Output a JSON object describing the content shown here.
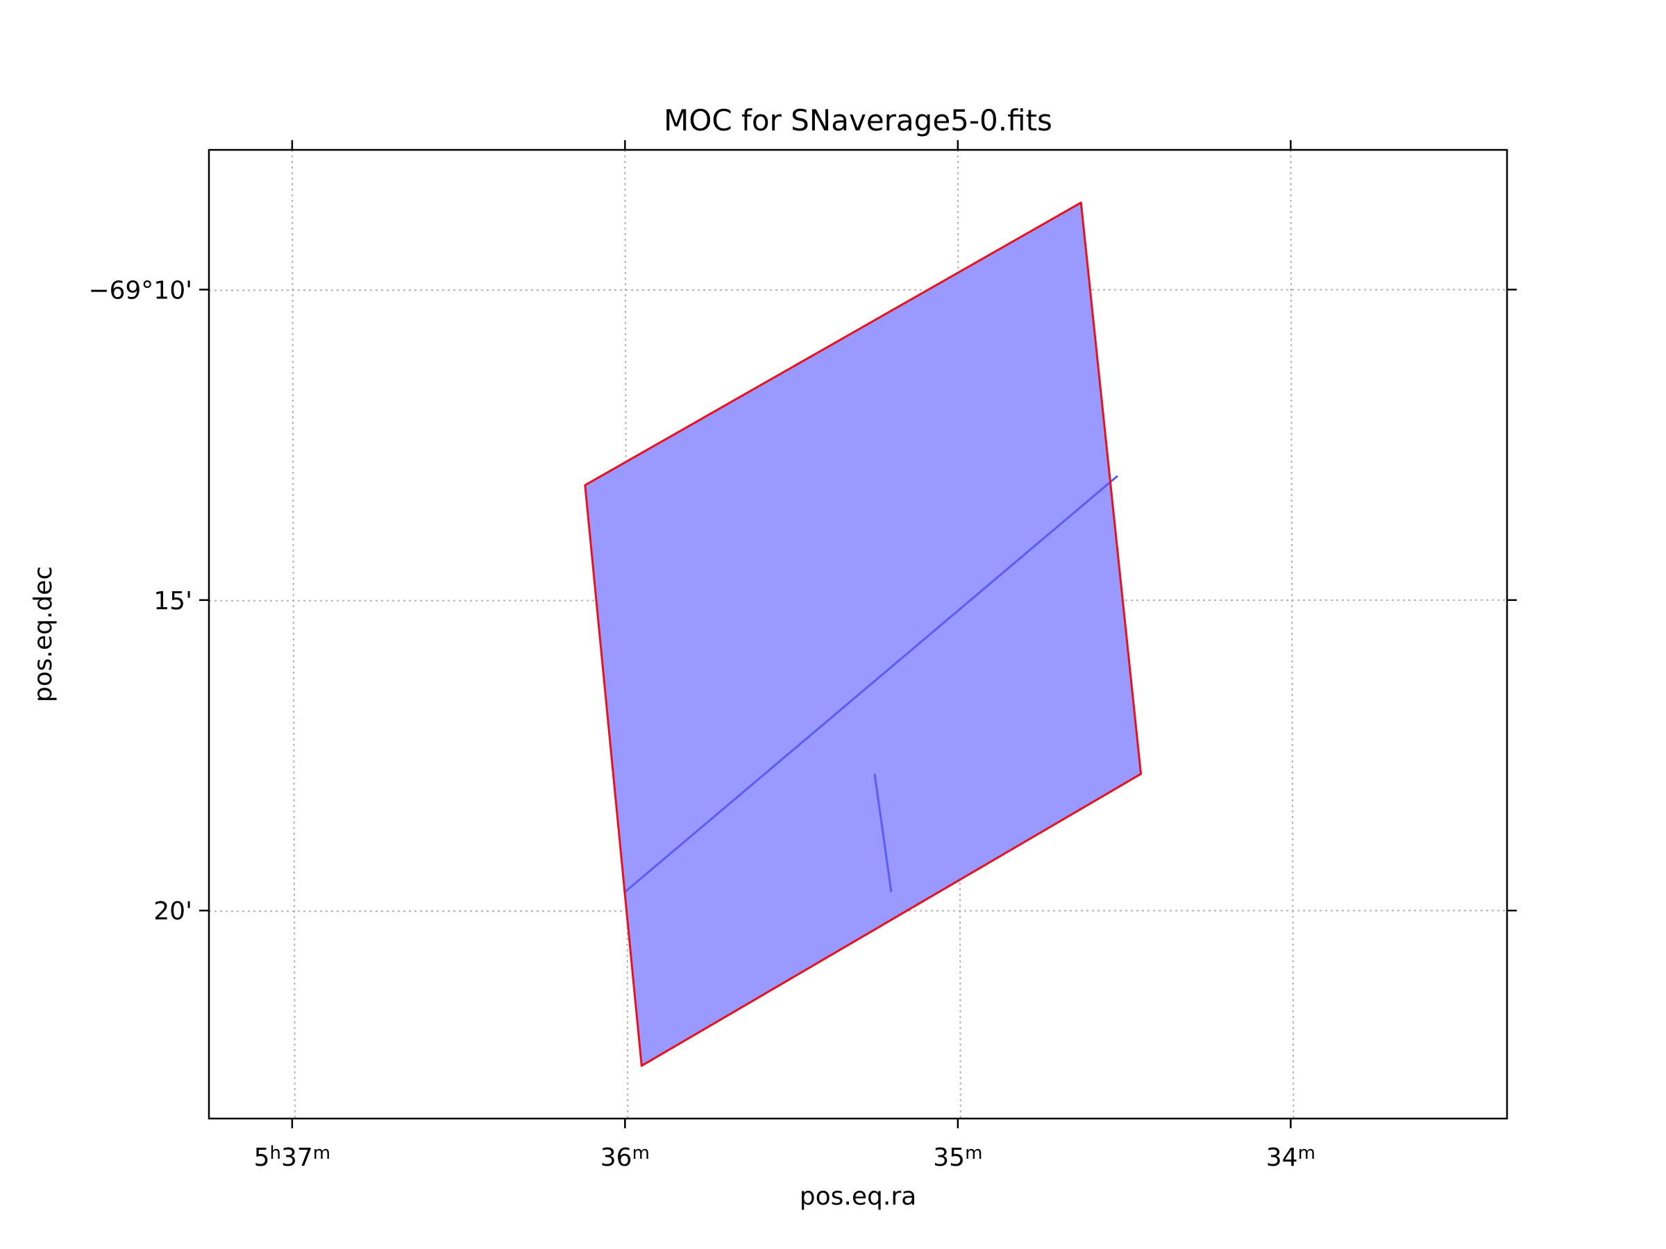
{
  "chart_data": {
    "type": "area",
    "title": "MOC for SNaverage5-0.fits",
    "xlabel": "pos.eq.ra",
    "ylabel": "pos.eq.dec",
    "grid": true,
    "x_ticks": [
      {
        "ra_min": 37,
        "parts": [
          "5",
          "h",
          "37",
          "m"
        ]
      },
      {
        "ra_min": 36,
        "parts": [
          "36",
          "m"
        ]
      },
      {
        "ra_min": 35,
        "parts": [
          "35",
          "m"
        ]
      },
      {
        "ra_min": 34,
        "parts": [
          "34",
          "m"
        ]
      }
    ],
    "y_ticks": [
      {
        "dec_arcmin": 10,
        "label": "−69°10'"
      },
      {
        "dec_arcmin": 15,
        "label": "15'"
      },
      {
        "dec_arcmin": 20,
        "label": "20'"
      }
    ],
    "xlim": [
      37.25,
      33.35
    ],
    "ylim": [
      7.75,
      23.35
    ],
    "coverage_polygon": [
      {
        "ra_min": 34.63,
        "dec_arcmin": 8.6
      },
      {
        "ra_min": 34.45,
        "dec_arcmin": 17.8
      },
      {
        "ra_min": 35.95,
        "dec_arcmin": 22.5
      },
      {
        "ra_min": 36.12,
        "dec_arcmin": 13.15
      }
    ],
    "internal_cell_edges": [
      [
        {
          "ra_min": 34.52,
          "dec_arcmin": 13.0
        },
        {
          "ra_min": 36.0,
          "dec_arcmin": 19.7
        }
      ],
      [
        {
          "ra_min": 35.25,
          "dec_arcmin": 17.8
        },
        {
          "ra_min": 35.2,
          "dec_arcmin": 19.7
        }
      ]
    ],
    "colors": {
      "fill": "#9999ff",
      "outline": "#e8101c",
      "cell_edges": "#5c5cf5",
      "grid": "#b0b0b0"
    }
  }
}
